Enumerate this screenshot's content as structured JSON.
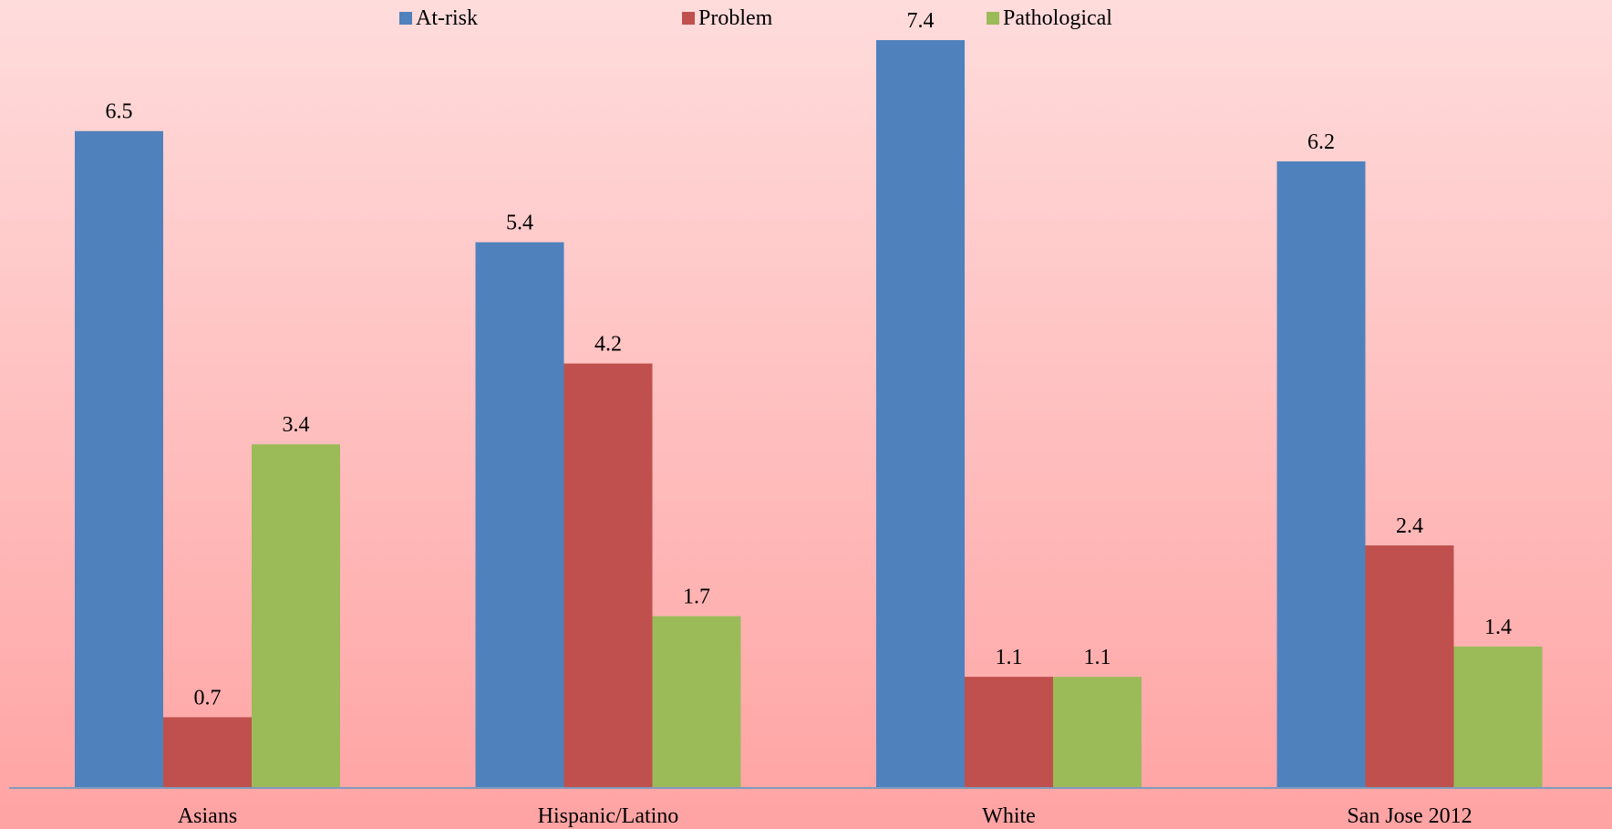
{
  "chart_data": {
    "type": "bar",
    "title": "",
    "xlabel": "",
    "ylabel": "",
    "categories": [
      "Asians",
      "Hispanic/Latino",
      "White",
      "San Jose 2012"
    ],
    "series": [
      {
        "name": "At-risk",
        "values": [
          6.5,
          5.4,
          7.4,
          6.2
        ],
        "color": "#4f81bd"
      },
      {
        "name": "Problem",
        "values": [
          0.7,
          4.2,
          1.1,
          2.4
        ],
        "color": "#c0504d"
      },
      {
        "name": "Pathological",
        "values": [
          3.4,
          1.7,
          1.1,
          1.4
        ],
        "color": "#9bbb59"
      }
    ],
    "data_labels": true,
    "ylim": [
      0,
      7.4
    ],
    "grid": false,
    "legend_position": "top"
  }
}
